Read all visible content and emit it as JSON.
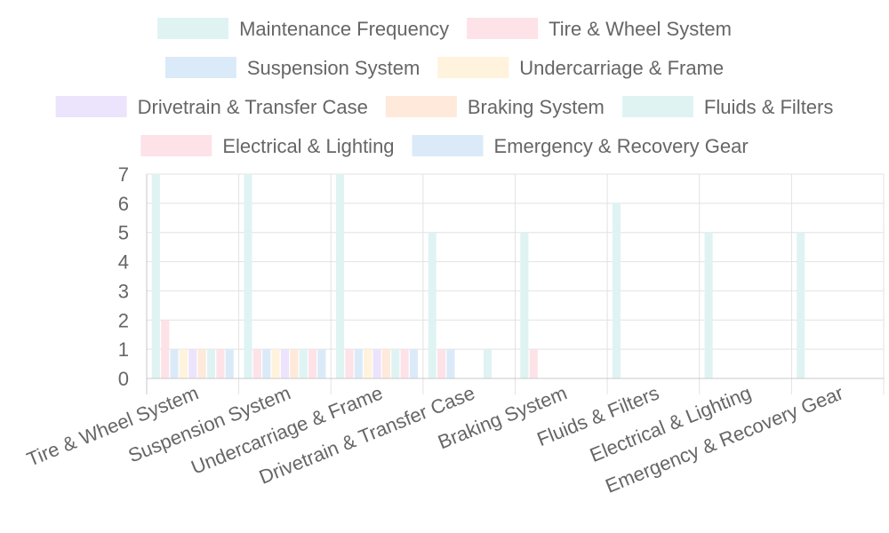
{
  "chart_data": {
    "type": "bar",
    "categories": [
      "Tire & Wheel System",
      "Suspension System",
      "Undercarriage & Frame",
      "Drivetrain & Transfer Case",
      "Braking System",
      "Fluids & Filters",
      "Electrical & Lighting",
      "Emergency & Recovery Gear"
    ],
    "series": [
      {
        "name": "Maintenance Frequency",
        "color": "#dff3f3",
        "values": [
          7,
          7,
          7,
          5,
          5,
          6,
          5,
          5
        ]
      },
      {
        "name": "Tire & Wheel System",
        "color": "#fde2e8",
        "values": [
          2,
          1,
          1,
          1,
          1,
          0,
          0,
          0
        ]
      },
      {
        "name": "Suspension System",
        "color": "#dbeaf8",
        "values": [
          1,
          1,
          1,
          1,
          0,
          0,
          0,
          0
        ]
      },
      {
        "name": "Undercarriage & Frame",
        "color": "#fff3dd",
        "values": [
          1,
          1,
          1,
          0,
          0,
          0,
          0,
          0
        ]
      },
      {
        "name": "Drivetrain & Transfer Case",
        "color": "#ebe4fc",
        "values": [
          1,
          1,
          1,
          0,
          0,
          0,
          0,
          0
        ]
      },
      {
        "name": "Braking System",
        "color": "#fee9da",
        "values": [
          1,
          1,
          1,
          0,
          0,
          0,
          0,
          0
        ]
      },
      {
        "name": "Fluids & Filters",
        "color": "#dff3f3",
        "values": [
          1,
          1,
          1,
          1,
          0,
          0,
          0,
          0
        ]
      },
      {
        "name": "Electrical & Lighting",
        "color": "#fde2e8",
        "values": [
          1,
          1,
          1,
          0,
          0,
          0,
          0,
          0
        ]
      },
      {
        "name": "Emergency & Recovery Gear",
        "color": "#dbeaf8",
        "values": [
          1,
          1,
          1,
          0,
          0,
          0,
          0,
          0
        ]
      }
    ],
    "ylim": [
      0,
      7
    ],
    "yticks": [
      0,
      1,
      2,
      3,
      4,
      5,
      6,
      7
    ],
    "grid": true,
    "legend_position": "top",
    "title": "",
    "xlabel": "",
    "ylabel": ""
  }
}
